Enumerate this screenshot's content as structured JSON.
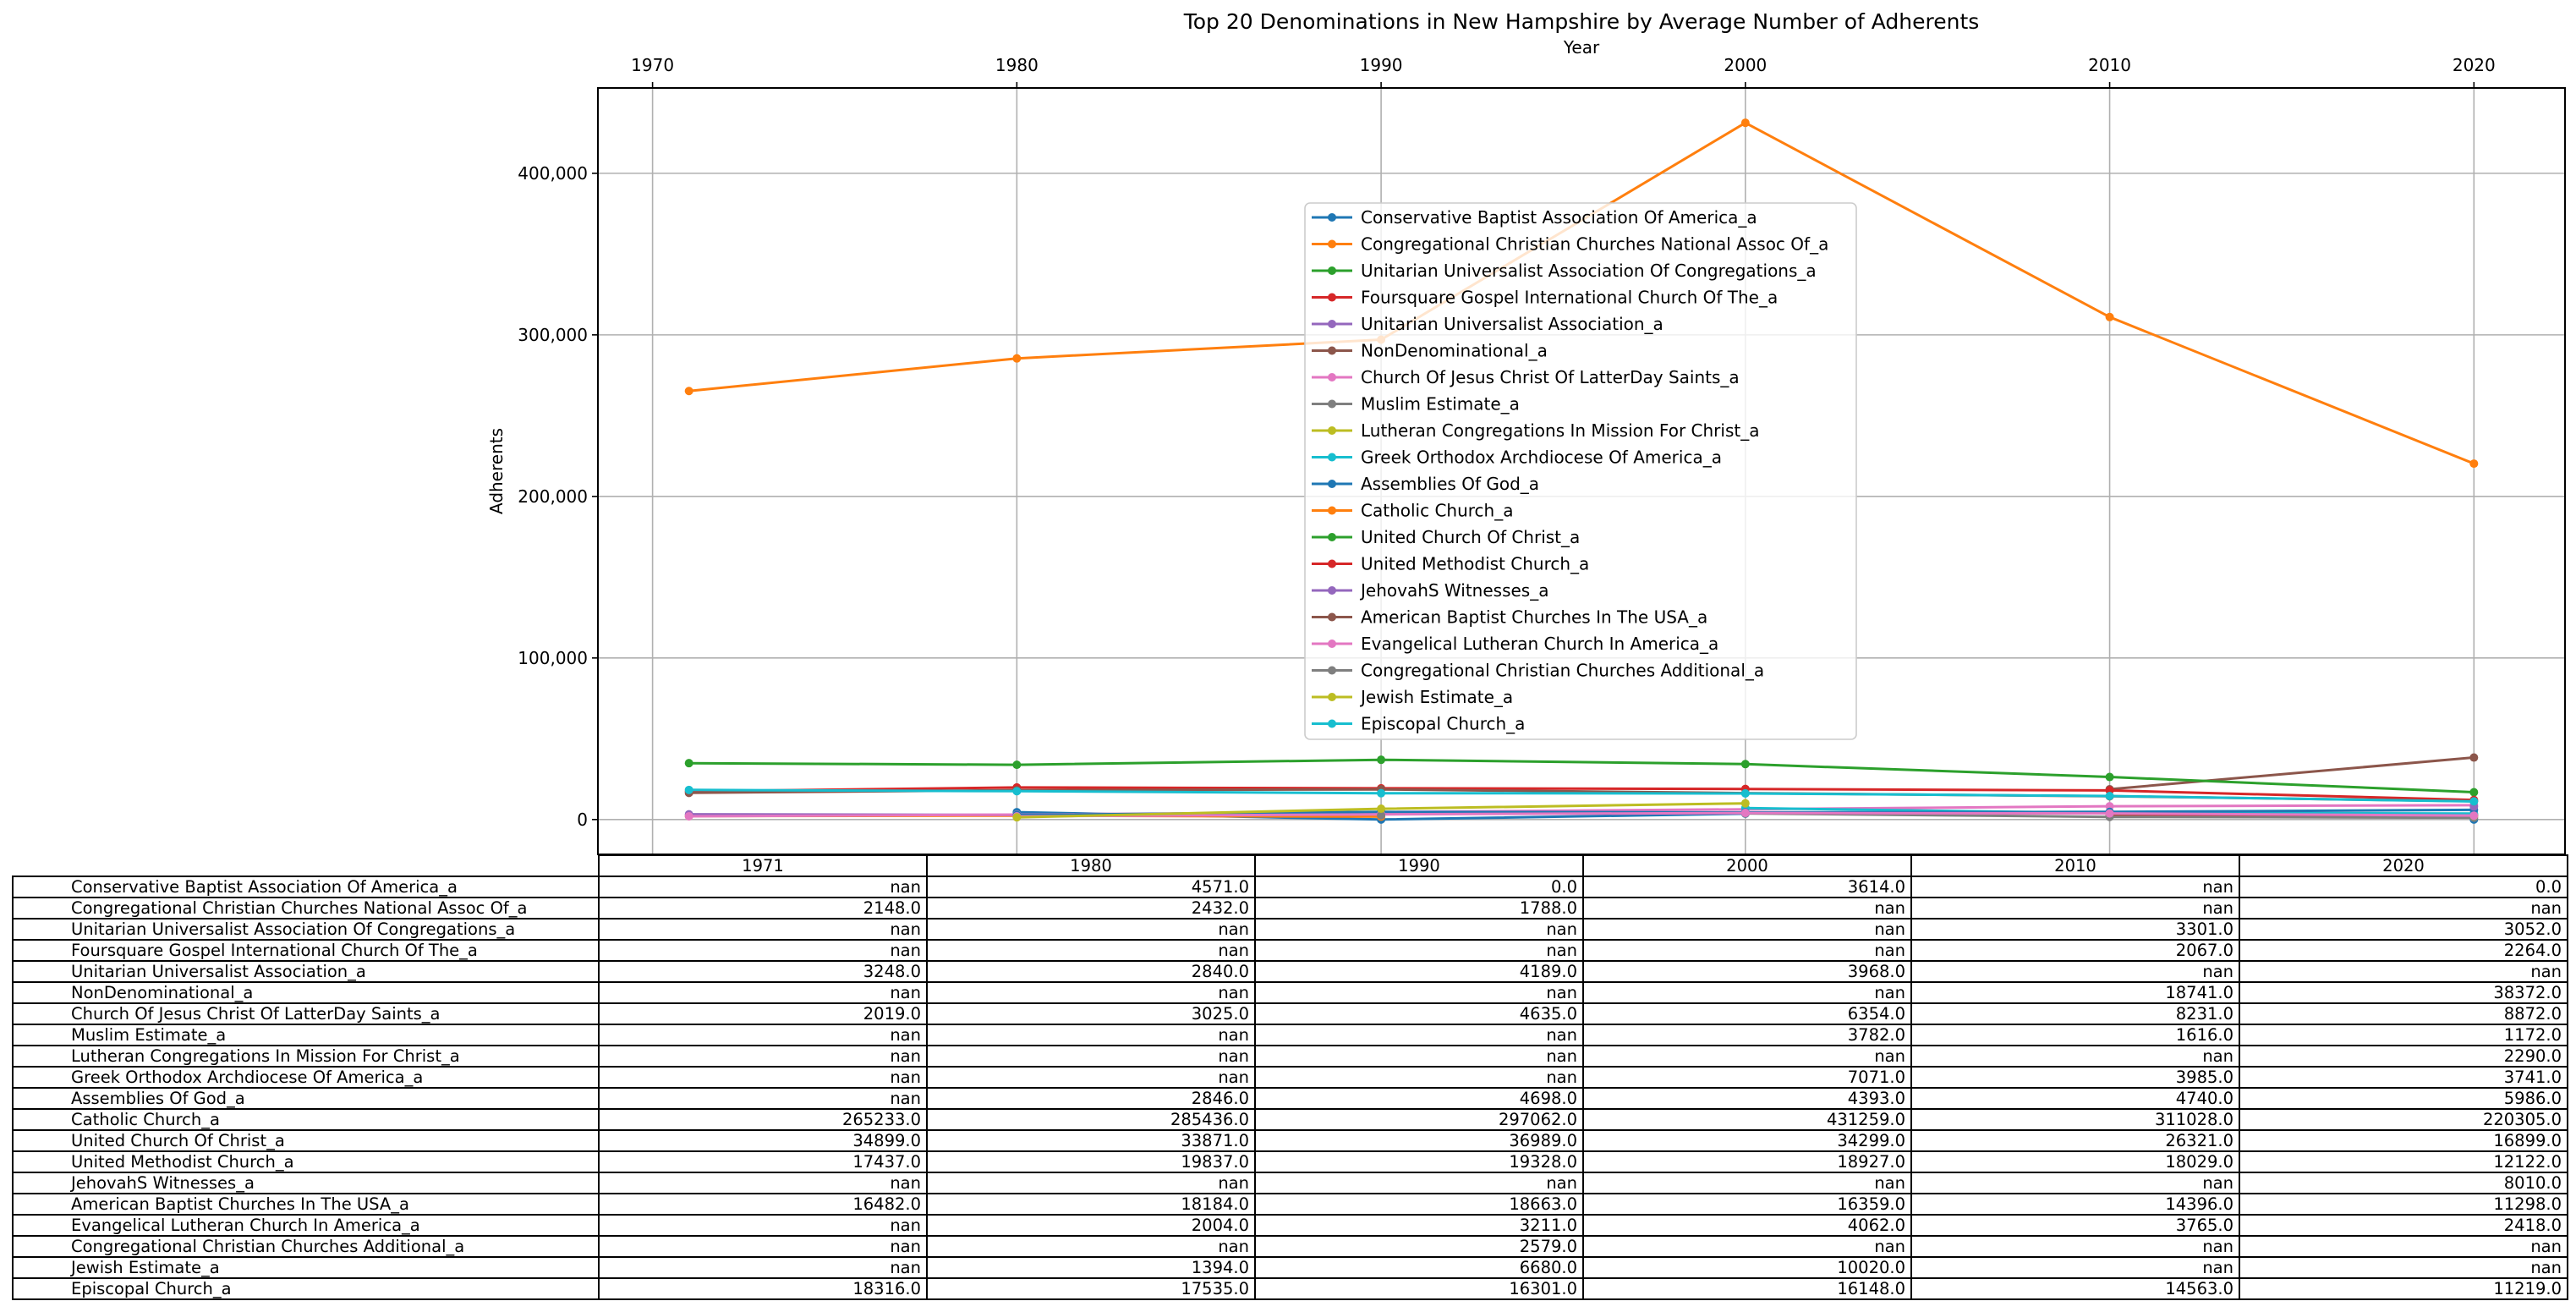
{
  "chart_data": {
    "type": "line",
    "title": "Top 20 Denominations in New Hampshire by Average Number of Adherents",
    "xlabel": "Year",
    "ylabel": "Adherents",
    "x": [
      1971,
      1980,
      1990,
      2000,
      2010,
      2020
    ],
    "x_ticks": [
      1970,
      1980,
      1990,
      2000,
      2010,
      2020
    ],
    "x_tick_labels": [
      "1970",
      "1980",
      "1990",
      "2000",
      "2010",
      "2020"
    ],
    "xlim": [
      1968.5,
      2022.5
    ],
    "x_axis_position": "top",
    "y_ticks": [
      0,
      100000,
      200000,
      300000,
      400000
    ],
    "y_tick_labels": [
      "0",
      "100,000",
      "200,000",
      "300,000",
      "400,000"
    ],
    "ylim": [
      -21563,
      452822
    ],
    "grid": true,
    "legend_position": "center",
    "table_col_labels": [
      "1971",
      "1980",
      "1990",
      "2000",
      "2010",
      "2020"
    ],
    "series": [
      {
        "name": "Conservative Baptist Association Of America_a",
        "color": "#1f77b4",
        "values": [
          null,
          4571.0,
          0.0,
          3614.0,
          null,
          0.0
        ]
      },
      {
        "name": "Congregational Christian Churches National Assoc Of_a",
        "color": "#ff7f0e",
        "values": [
          2148.0,
          2432.0,
          1788.0,
          null,
          null,
          null
        ]
      },
      {
        "name": "Unitarian Universalist Association Of Congregations_a",
        "color": "#2ca02c",
        "values": [
          null,
          null,
          null,
          null,
          3301.0,
          3052.0
        ]
      },
      {
        "name": "Foursquare Gospel International Church Of The_a",
        "color": "#d62728",
        "values": [
          null,
          null,
          null,
          null,
          2067.0,
          2264.0
        ]
      },
      {
        "name": "Unitarian Universalist Association_a",
        "color": "#9467bd",
        "values": [
          3248.0,
          2840.0,
          4189.0,
          3968.0,
          null,
          null
        ]
      },
      {
        "name": "NonDenominational_a",
        "color": "#8c564b",
        "values": [
          null,
          null,
          null,
          null,
          18741.0,
          38372.0
        ]
      },
      {
        "name": "Church Of Jesus Christ Of LatterDay Saints_a",
        "color": "#e377c2",
        "values": [
          2019.0,
          3025.0,
          4635.0,
          6354.0,
          8231.0,
          8872.0
        ]
      },
      {
        "name": "Muslim Estimate_a",
        "color": "#7f7f7f",
        "values": [
          null,
          null,
          null,
          3782.0,
          1616.0,
          1172.0
        ]
      },
      {
        "name": "Lutheran Congregations In Mission For Christ_a",
        "color": "#bcbd22",
        "values": [
          null,
          null,
          null,
          null,
          null,
          2290.0
        ]
      },
      {
        "name": "Greek Orthodox Archdiocese Of America_a",
        "color": "#17becf",
        "values": [
          null,
          null,
          null,
          7071.0,
          3985.0,
          3741.0
        ]
      },
      {
        "name": "Assemblies Of God_a",
        "color": "#1f77b4",
        "values": [
          null,
          2846.0,
          4698.0,
          4393.0,
          4740.0,
          5986.0
        ]
      },
      {
        "name": "Catholic Church_a",
        "color": "#ff7f0e",
        "values": [
          265233.0,
          285436.0,
          297062.0,
          431259.0,
          311028.0,
          220305.0
        ]
      },
      {
        "name": "United Church Of Christ_a",
        "color": "#2ca02c",
        "values": [
          34899.0,
          33871.0,
          36989.0,
          34299.0,
          26321.0,
          16899.0
        ]
      },
      {
        "name": "United Methodist Church_a",
        "color": "#d62728",
        "values": [
          17437.0,
          19837.0,
          19328.0,
          18927.0,
          18029.0,
          12122.0
        ]
      },
      {
        "name": "JehovahS Witnesses_a",
        "color": "#9467bd",
        "values": [
          null,
          null,
          null,
          null,
          null,
          8010.0
        ]
      },
      {
        "name": "American Baptist Churches In The USA_a",
        "color": "#8c564b",
        "values": [
          16482.0,
          18184.0,
          18663.0,
          16359.0,
          14396.0,
          11298.0
        ]
      },
      {
        "name": "Evangelical Lutheran Church In America_a",
        "color": "#e377c2",
        "values": [
          null,
          2004.0,
          3211.0,
          4062.0,
          3765.0,
          2418.0
        ]
      },
      {
        "name": "Congregational Christian Churches Additional_a",
        "color": "#7f7f7f",
        "values": [
          null,
          null,
          2579.0,
          null,
          null,
          null
        ]
      },
      {
        "name": "Jewish Estimate_a",
        "color": "#bcbd22",
        "values": [
          null,
          1394.0,
          6680.0,
          10020.0,
          null,
          null
        ]
      },
      {
        "name": "Episcopal Church_a",
        "color": "#17becf",
        "values": [
          18316.0,
          17535.0,
          16301.0,
          16148.0,
          14563.0,
          11219.0
        ]
      }
    ]
  }
}
